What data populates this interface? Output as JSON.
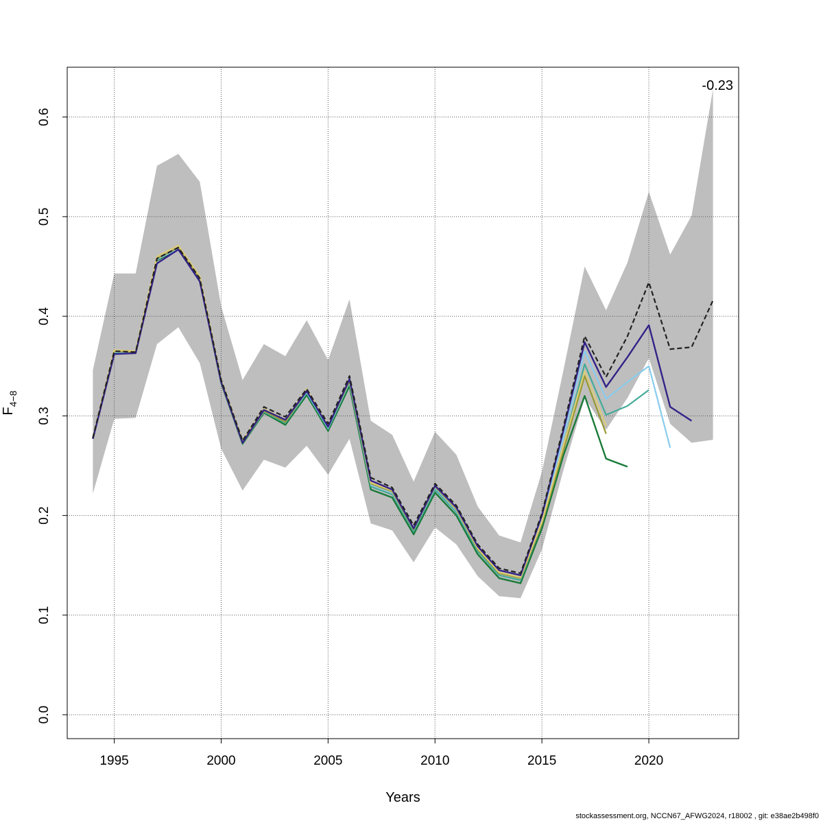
{
  "chart_data": {
    "type": "line",
    "title": "",
    "xlabel": "Years",
    "ylabel_main": "F",
    "ylabel_sub": "4−8",
    "xlim": [
      1992.8,
      2024.2
    ],
    "ylim": [
      -0.024,
      0.65
    ],
    "xticks": [
      1995,
      2000,
      2005,
      2010,
      2015,
      2020
    ],
    "yticks": [
      0.0,
      0.1,
      0.2,
      0.3,
      0.4,
      0.5,
      0.6
    ],
    "ytick_labels": [
      "0.0",
      "0.1",
      "0.2",
      "0.3",
      "0.4",
      "0.5",
      "0.6"
    ],
    "grid": true,
    "annotation": "-0.23",
    "band": {
      "color": "#bebebe",
      "x": [
        1994,
        1995,
        1996,
        1997,
        1998,
        1999,
        2000,
        2001,
        2002,
        2003,
        2004,
        2005,
        2006,
        2007,
        2008,
        2009,
        2010,
        2011,
        2012,
        2013,
        2014,
        2015,
        2016,
        2017,
        2018,
        2019,
        2020,
        2021,
        2022,
        2023
      ],
      "lower": [
        0.222,
        0.297,
        0.298,
        0.372,
        0.389,
        0.353,
        0.267,
        0.225,
        0.256,
        0.248,
        0.27,
        0.241,
        0.277,
        0.192,
        0.185,
        0.153,
        0.188,
        0.171,
        0.139,
        0.119,
        0.117,
        0.166,
        0.245,
        0.318,
        0.286,
        0.318,
        0.358,
        0.292,
        0.273,
        0.276
      ],
      "upper": [
        0.346,
        0.443,
        0.443,
        0.551,
        0.563,
        0.535,
        0.41,
        0.336,
        0.372,
        0.36,
        0.396,
        0.356,
        0.417,
        0.295,
        0.281,
        0.234,
        0.284,
        0.261,
        0.209,
        0.18,
        0.173,
        0.244,
        0.345,
        0.45,
        0.406,
        0.454,
        0.525,
        0.462,
        0.501,
        0.628
      ]
    },
    "series": [
      {
        "color": "#1a7a3a",
        "width": 2.4,
        "dash": "",
        "x": [
          1994,
          1995,
          1996,
          1997,
          1998,
          1999,
          2000,
          2001,
          2002,
          2003,
          2004,
          2005,
          2006,
          2007,
          2008,
          2009,
          2010,
          2011,
          2012,
          2013,
          2014,
          2015,
          2016,
          2017,
          2018,
          2019
        ],
        "values": [
          0.277,
          0.363,
          0.363,
          0.456,
          0.467,
          0.437,
          0.333,
          0.272,
          0.303,
          0.291,
          0.321,
          0.285,
          0.33,
          0.226,
          0.218,
          0.181,
          0.223,
          0.2,
          0.161,
          0.137,
          0.132,
          0.187,
          0.26,
          0.32,
          0.257,
          0.249
        ]
      },
      {
        "color": "#44aa99",
        "width": 2.2,
        "dash": "",
        "x": [
          1994,
          1995,
          1996,
          1997,
          1998,
          1999,
          2000,
          2001,
          2002,
          2003,
          2004,
          2005,
          2006,
          2007,
          2008,
          2009,
          2010,
          2011,
          2012,
          2013,
          2014,
          2015,
          2016,
          2017,
          2018,
          2019,
          2020
        ],
        "values": [
          0.277,
          0.364,
          0.364,
          0.457,
          0.468,
          0.438,
          0.334,
          0.273,
          0.304,
          0.293,
          0.323,
          0.287,
          0.333,
          0.229,
          0.221,
          0.184,
          0.226,
          0.203,
          0.164,
          0.14,
          0.135,
          0.192,
          0.27,
          0.352,
          0.301,
          0.31,
          0.326
        ]
      },
      {
        "color": "#88ccee",
        "width": 2.2,
        "dash": "",
        "x": [
          1994,
          1995,
          1996,
          1997,
          1998,
          1999,
          2000,
          2001,
          2002,
          2003,
          2004,
          2005,
          2006,
          2007,
          2008,
          2009,
          2010,
          2011,
          2012,
          2013,
          2014,
          2015,
          2016,
          2017,
          2018,
          2019,
          2020,
          2021
        ],
        "values": [
          0.277,
          0.364,
          0.364,
          0.457,
          0.468,
          0.438,
          0.334,
          0.273,
          0.305,
          0.294,
          0.324,
          0.288,
          0.334,
          0.231,
          0.223,
          0.186,
          0.228,
          0.205,
          0.166,
          0.142,
          0.137,
          0.195,
          0.278,
          0.365,
          0.317,
          0.334,
          0.35,
          0.268
        ]
      },
      {
        "color": "#999933",
        "width": 2.2,
        "dash": "",
        "x": [
          1994,
          1995,
          1996,
          1997,
          1998,
          1999,
          2000,
          2001,
          2002,
          2003,
          2004,
          2005,
          2006,
          2007,
          2008,
          2009,
          2010,
          2011,
          2012,
          2013,
          2014,
          2015,
          2016,
          2017,
          2018
        ],
        "values": [
          0.277,
          0.365,
          0.364,
          0.458,
          0.469,
          0.438,
          0.334,
          0.273,
          0.305,
          0.294,
          0.325,
          0.289,
          0.335,
          0.232,
          0.224,
          0.186,
          0.229,
          0.206,
          0.166,
          0.142,
          0.137,
          0.192,
          0.265,
          0.34,
          0.282
        ]
      },
      {
        "color": "#ddcc77",
        "width": 2.2,
        "dash": "",
        "x": [
          1994,
          1995,
          1996,
          1997,
          1998,
          1999,
          2000,
          2001,
          2002,
          2003,
          2004,
          2005,
          2006,
          2007,
          2008,
          2009,
          2010,
          2011,
          2012,
          2013,
          2014,
          2015,
          2016,
          2017,
          2018
        ],
        "values": [
          0.278,
          0.366,
          0.365,
          0.46,
          0.471,
          0.44,
          0.336,
          0.275,
          0.307,
          0.296,
          0.327,
          0.29,
          0.337,
          0.233,
          0.225,
          0.187,
          0.23,
          0.207,
          0.167,
          0.143,
          0.138,
          0.194,
          0.27,
          0.345,
          0.29
        ]
      },
      {
        "color": "#332288",
        "width": 2.4,
        "dash": "",
        "x": [
          1994,
          1995,
          1996,
          1997,
          1998,
          1999,
          2000,
          2001,
          2002,
          2003,
          2004,
          2005,
          2006,
          2007,
          2008,
          2009,
          2010,
          2011,
          2012,
          2013,
          2014,
          2015,
          2016,
          2017,
          2018,
          2019,
          2020,
          2021,
          2022
        ],
        "values": [
          0.277,
          0.362,
          0.363,
          0.453,
          0.467,
          0.435,
          0.334,
          0.273,
          0.306,
          0.296,
          0.325,
          0.289,
          0.337,
          0.235,
          0.226,
          0.187,
          0.23,
          0.208,
          0.169,
          0.145,
          0.14,
          0.2,
          0.285,
          0.374,
          0.329,
          0.359,
          0.391,
          0.309,
          0.295
        ]
      },
      {
        "color": "#222222",
        "width": 2.2,
        "dash": "7,4",
        "x": [
          1994,
          1995,
          1996,
          1997,
          1998,
          1999,
          2000,
          2001,
          2002,
          2003,
          2004,
          2005,
          2006,
          2007,
          2008,
          2009,
          2010,
          2011,
          2012,
          2013,
          2014,
          2015,
          2016,
          2017,
          2018,
          2019,
          2020,
          2021,
          2022,
          2023
        ],
        "values": [
          0.278,
          0.365,
          0.364,
          0.458,
          0.469,
          0.438,
          0.336,
          0.275,
          0.309,
          0.299,
          0.327,
          0.292,
          0.34,
          0.238,
          0.228,
          0.19,
          0.232,
          0.21,
          0.171,
          0.147,
          0.142,
          0.202,
          0.288,
          0.38,
          0.339,
          0.38,
          0.434,
          0.367,
          0.369,
          0.416
        ]
      }
    ]
  },
  "footer_text": "stockassessment.org, NCCN67_AFWG2024, r18002 , git: e38ae2b498f0"
}
